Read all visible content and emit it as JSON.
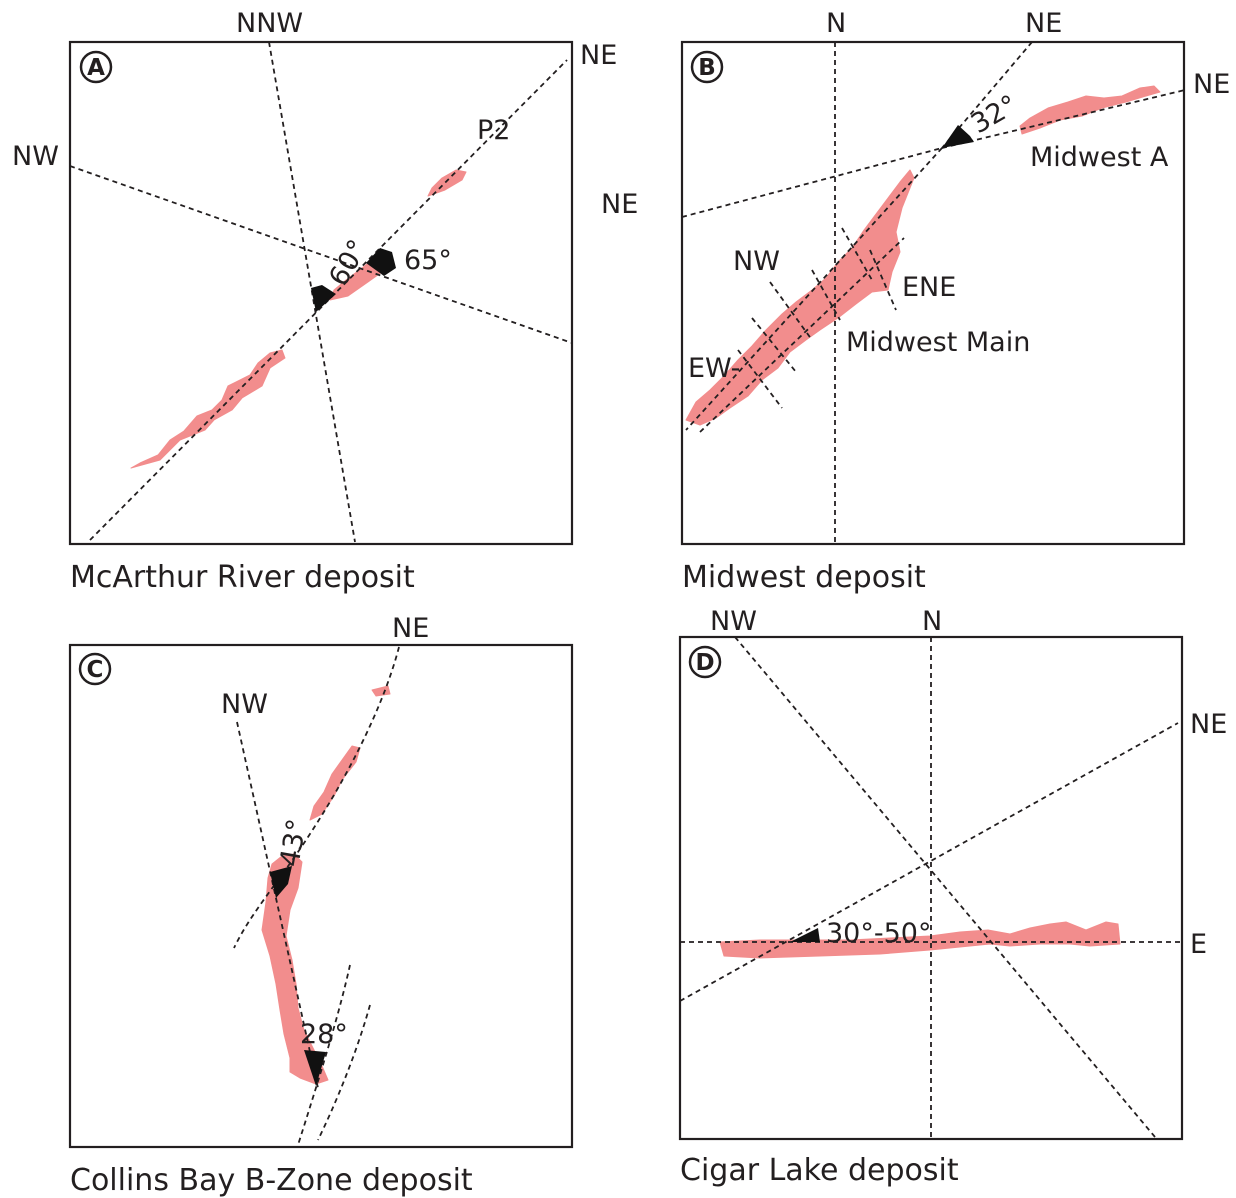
{
  "panels": {
    "a": {
      "letter": "A",
      "caption": "McArthur River deposit",
      "labels": {
        "nnw": "NNW",
        "ne_top": "NE",
        "nw": "NW",
        "ne_right": "NE",
        "p2": "P2",
        "angle_60": "60°",
        "angle_65": "65°"
      }
    },
    "b": {
      "letter": "B",
      "caption": "Midwest deposit",
      "labels": {
        "n": "N",
        "ne_top": "NE",
        "ne_right": "NE",
        "angle_32": "32°",
        "midwest_a": "Midwest A",
        "nw": "NW",
        "ene": "ENE",
        "midwest_main": "Midwest Main",
        "ew": "EW-"
      }
    },
    "c": {
      "letter": "C",
      "caption": "Collins Bay B-Zone deposit",
      "labels": {
        "ne": "NE",
        "nw": "NW",
        "angle_43": "43°",
        "angle_28": "28°"
      }
    },
    "d": {
      "letter": "D",
      "caption": "Cigar Lake deposit",
      "labels": {
        "nw": "NW",
        "n": "N",
        "ne": "NE",
        "e": "E",
        "angle_range": "30°-50°"
      }
    }
  },
  "colors": {
    "orebody": "#f28d8d",
    "lines": "#231f20",
    "angle_marker": "#111111"
  }
}
